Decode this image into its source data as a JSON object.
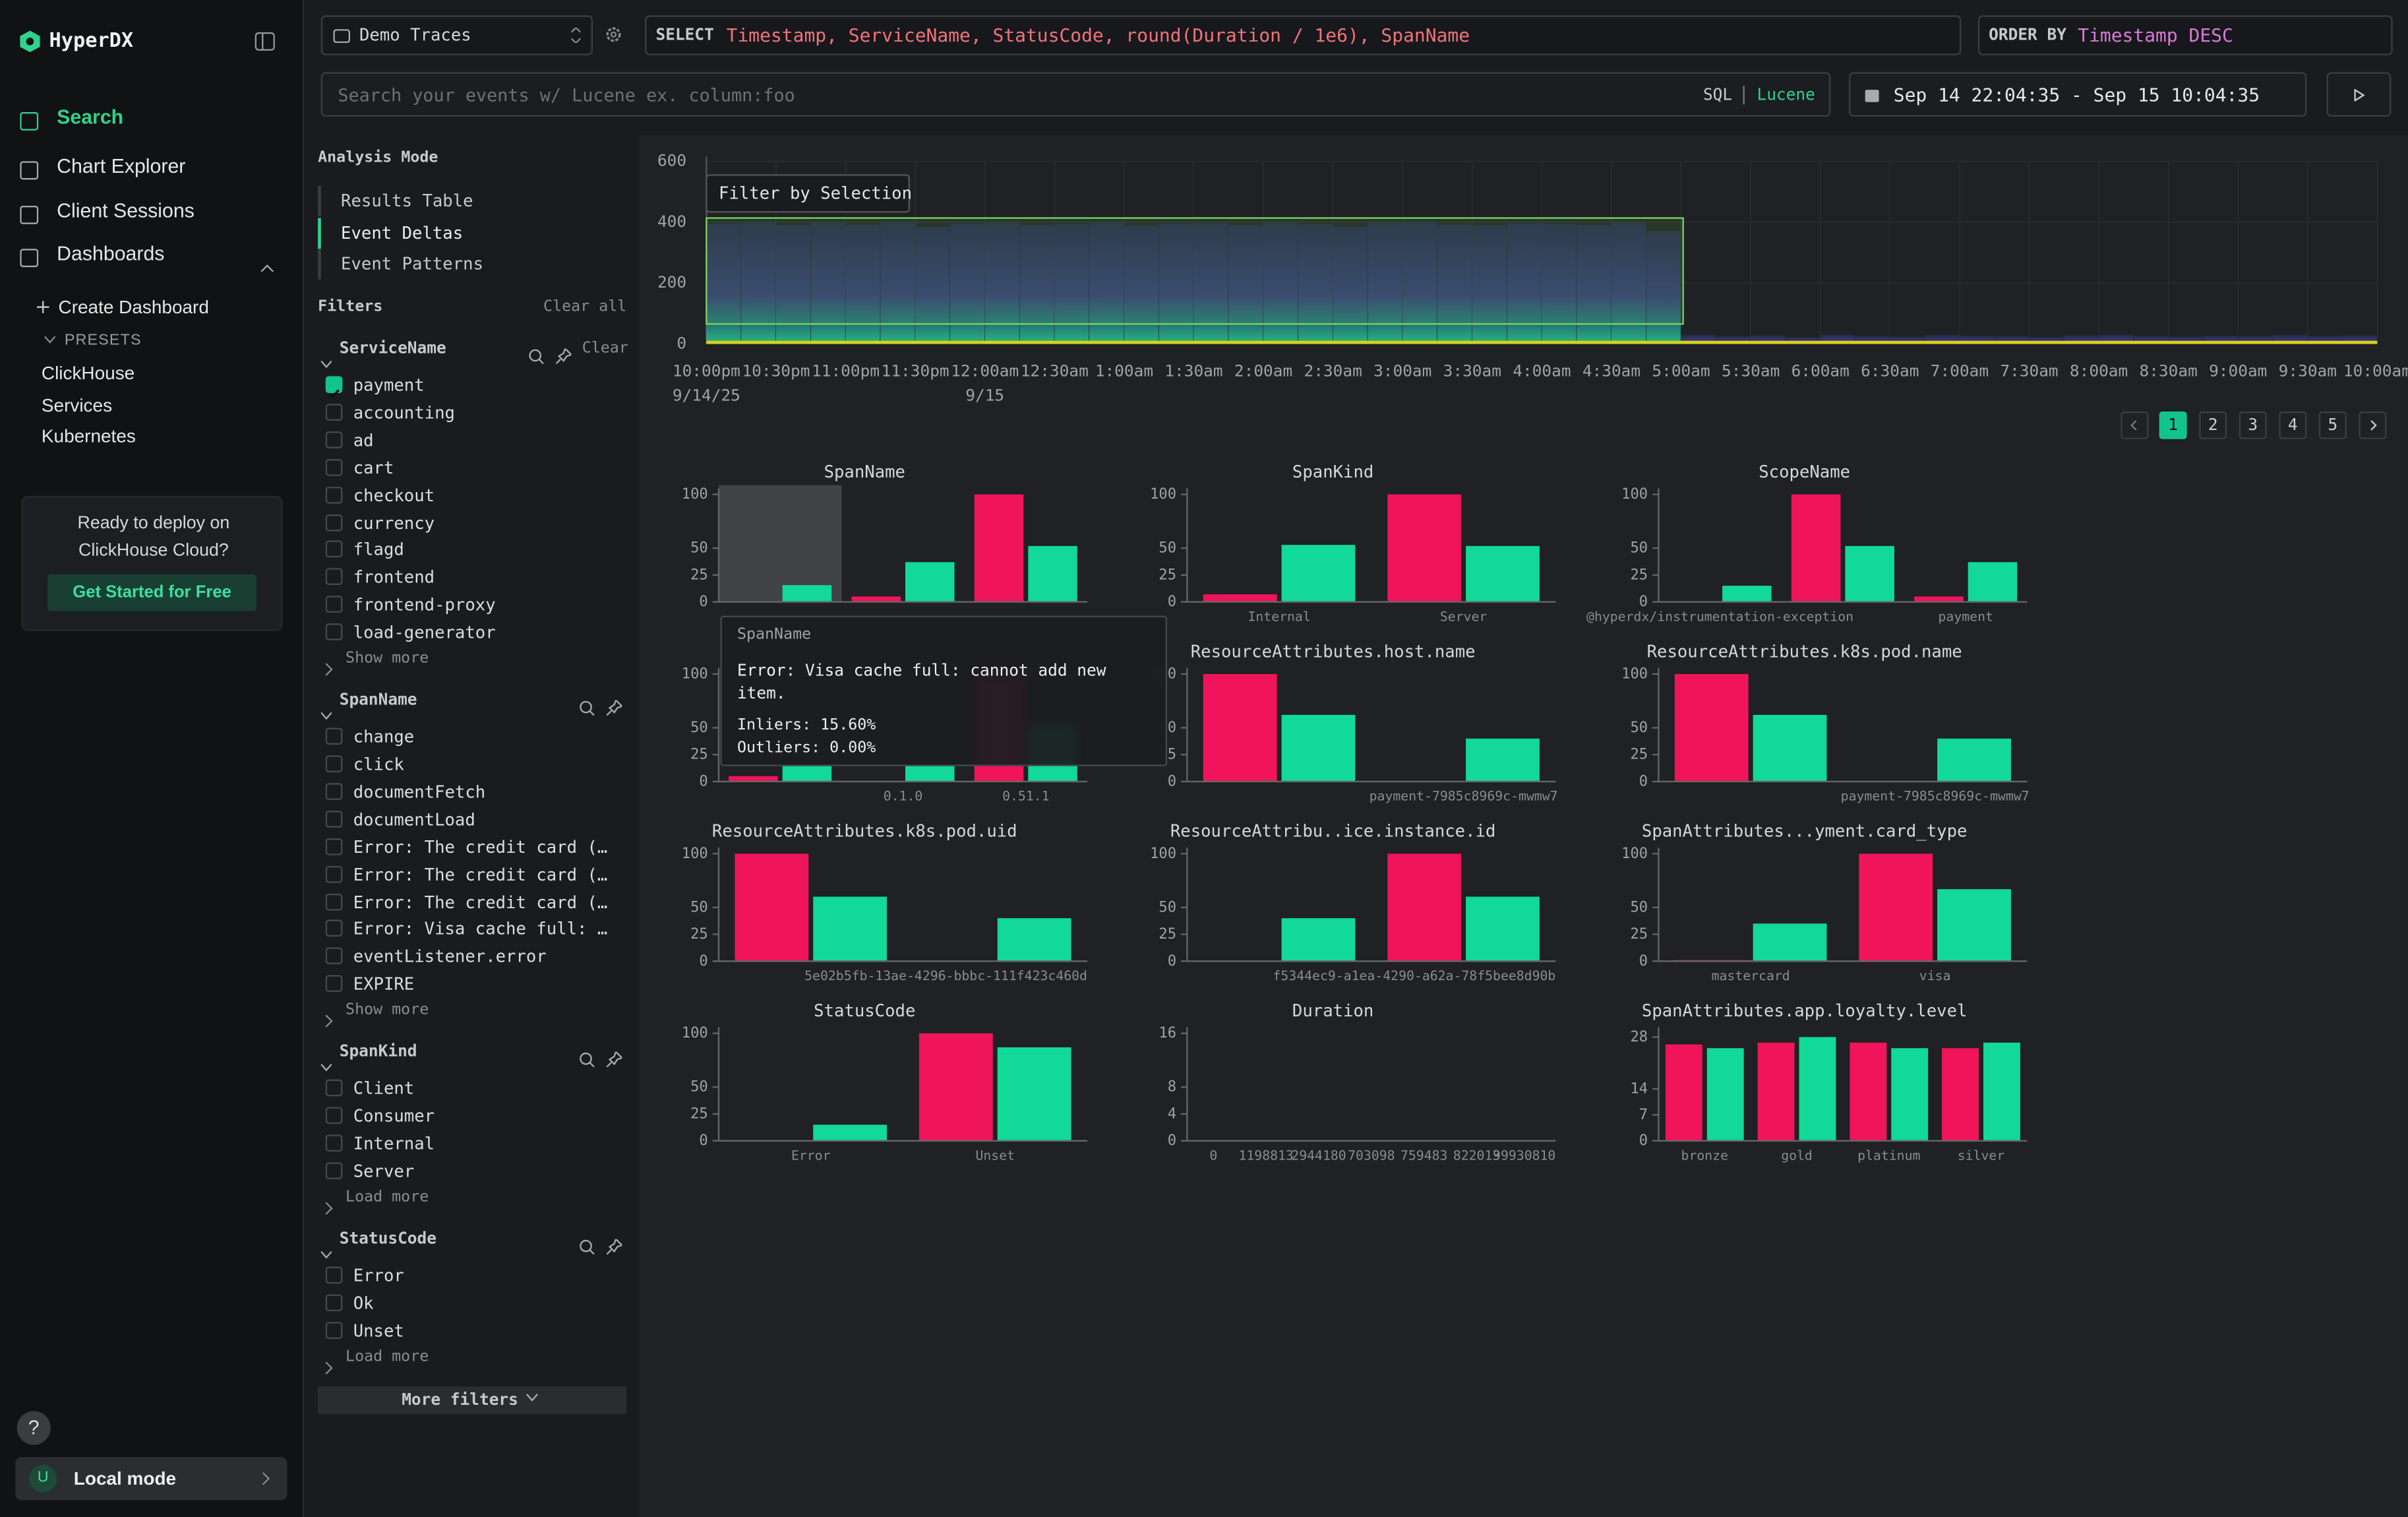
{
  "sidebar": {
    "brand": "HyperDX",
    "nav": [
      "Search",
      "Chart Explorer",
      "Client Sessions",
      "Dashboards"
    ],
    "active_nav": 0,
    "create_dashboard": "Create Dashboard",
    "presets_label": "PRESETS",
    "presets": [
      "ClickHouse",
      "Services",
      "Kubernetes"
    ],
    "promo": {
      "text": "Ready to deploy on ClickHouse Cloud?",
      "button": "Get Started for Free"
    },
    "help": "?",
    "user": {
      "initial": "U",
      "label": "Local mode"
    }
  },
  "topbar": {
    "source": "Demo Traces",
    "select_keyword": "SELECT",
    "select": "Timestamp, ServiceName, StatusCode, round(Duration / 1e6), SpanName",
    "order_keyword": "ORDER BY",
    "order": "Timestamp DESC",
    "search_placeholder": "Search your events w/ Lucene ex. column:foo",
    "query_lang": [
      "SQL",
      "Lucene"
    ],
    "time_range": "Sep 14 22:04:35 - Sep 15 10:04:35"
  },
  "filters_panel": {
    "analysis_title": "Analysis Mode",
    "modes": [
      "Results Table",
      "Event Deltas",
      "Event Patterns"
    ],
    "active_mode": 1,
    "filters_title": "Filters",
    "clear_all": "Clear all",
    "groups": [
      {
        "name": "ServiceName",
        "clear": "Clear",
        "options": [
          {
            "label": "payment",
            "checked": true
          },
          {
            "label": "accounting",
            "checked": false
          },
          {
            "label": "ad",
            "checked": false
          },
          {
            "label": "cart",
            "checked": false
          },
          {
            "label": "checkout",
            "checked": false
          },
          {
            "label": "currency",
            "checked": false
          },
          {
            "label": "flagd",
            "checked": false
          },
          {
            "label": "frontend",
            "checked": false
          },
          {
            "label": "frontend-proxy",
            "checked": false
          },
          {
            "label": "load-generator",
            "checked": false
          }
        ],
        "more": "Show more"
      },
      {
        "name": "SpanName",
        "options": [
          {
            "label": "change",
            "checked": false
          },
          {
            "label": "click",
            "checked": false
          },
          {
            "label": "documentFetch",
            "checked": false
          },
          {
            "label": "documentLoad",
            "checked": false
          },
          {
            "label": "Error: The credit card (…",
            "checked": false
          },
          {
            "label": "Error: The credit card (…",
            "checked": false
          },
          {
            "label": "Error: The credit card (…",
            "checked": false
          },
          {
            "label": "Error: Visa cache full: …",
            "checked": false
          },
          {
            "label": "eventListener.error",
            "checked": false
          },
          {
            "label": "EXPIRE",
            "checked": false
          }
        ],
        "more": "Show more"
      },
      {
        "name": "SpanKind",
        "options": [
          {
            "label": "Client",
            "checked": false
          },
          {
            "label": "Consumer",
            "checked": false
          },
          {
            "label": "Internal",
            "checked": false
          },
          {
            "label": "Server",
            "checked": false
          }
        ],
        "more": "Load more"
      },
      {
        "name": "StatusCode",
        "options": [
          {
            "label": "Error",
            "checked": false
          },
          {
            "label": "Ok",
            "checked": false
          },
          {
            "label": "Unset",
            "checked": false
          }
        ],
        "more": "Load more"
      }
    ],
    "more_filters": "More filters"
  },
  "pagination": {
    "pages": [
      1,
      2,
      3,
      4,
      5
    ],
    "current": 1
  },
  "chart_data": [
    {
      "type": "histogram",
      "selection_label": "Filter by Selection",
      "bins": [
        0,
        15,
        30,
        45,
        60,
        75,
        90,
        105,
        120,
        135,
        150,
        165,
        180,
        195,
        210,
        225,
        240,
        255,
        270,
        285,
        300,
        315,
        330,
        345,
        360,
        375,
        390,
        405,
        420,
        435,
        450,
        465,
        480,
        495,
        510,
        525,
        540,
        555,
        570,
        585,
        600,
        615,
        630,
        645,
        660,
        675,
        690,
        705,
        720
      ],
      "values": [
        395,
        400,
        390,
        398,
        392,
        400,
        385,
        396,
        399,
        390,
        394,
        400,
        388,
        395,
        397,
        391,
        399,
        393,
        386,
        398,
        400,
        392,
        389,
        396,
        394,
        390,
        398,
        370,
        30,
        25,
        28,
        22,
        30,
        26,
        24,
        29,
        27,
        25,
        23,
        28,
        30,
        26,
        24,
        27,
        25,
        29,
        26,
        28
      ],
      "xlim": [
        0,
        720
      ],
      "xticks": [
        {
          "value": 0,
          "label": "10:00pm"
        },
        {
          "value": 30,
          "label": "10:30pm"
        },
        {
          "value": 60,
          "label": "11:00pm"
        },
        {
          "value": 90,
          "label": "11:30pm"
        },
        {
          "value": 120,
          "label": "12:00am"
        },
        {
          "value": 150,
          "label": "12:30am"
        },
        {
          "value": 180,
          "label": "1:00am"
        },
        {
          "value": 210,
          "label": "1:30am"
        },
        {
          "value": 240,
          "label": "2:00am"
        },
        {
          "value": 270,
          "label": "2:30am"
        },
        {
          "value": 300,
          "label": "3:00am"
        },
        {
          "value": 330,
          "label": "3:30am"
        },
        {
          "value": 360,
          "label": "4:00am"
        },
        {
          "value": 390,
          "label": "4:30am"
        },
        {
          "value": 420,
          "label": "5:00am"
        },
        {
          "value": 450,
          "label": "5:30am"
        },
        {
          "value": 480,
          "label": "6:00am"
        },
        {
          "value": 510,
          "label": "6:30am"
        },
        {
          "value": 540,
          "label": "7:00am"
        },
        {
          "value": 570,
          "label": "7:30am"
        },
        {
          "value": 600,
          "label": "8:00am"
        },
        {
          "value": 630,
          "label": "8:30am"
        },
        {
          "value": 660,
          "label": "9:00am"
        },
        {
          "value": 690,
          "label": "9:30am"
        },
        {
          "value": 720,
          "label": "10:00am"
        }
      ],
      "xtick_dates": [
        {
          "value": 0,
          "label": "9/14/25"
        },
        {
          "value": 120,
          "label": "9/15"
        }
      ],
      "ylim": [
        0,
        600
      ],
      "yticks": [
        0,
        200,
        400,
        600
      ],
      "grid": true
    },
    {
      "type": "bar",
      "title": "SpanName",
      "categories": [
        null,
        null,
        null
      ],
      "series": [
        {
          "color": "#f0145a",
          "values": [
            0,
            5,
            100
          ]
        },
        {
          "color": "#12d898",
          "values": [
            15.6,
            37,
            52
          ]
        }
      ],
      "ylim": [
        0,
        100
      ],
      "yticks": [
        0,
        25,
        50,
        100
      ],
      "hover_index": 0,
      "tooltip": {
        "title": "SpanName",
        "text": "Error: Visa cache full: cannot add new item.",
        "rows": [
          "Inliers: 15.60%",
          "Outliers: 0.00%"
        ]
      }
    },
    {
      "type": "bar",
      "title": "SpanKind",
      "categories": [
        "Internal",
        "Server"
      ],
      "series": [
        {
          "color": "#f0145a",
          "values": [
            7,
            100
          ]
        },
        {
          "color": "#12d898",
          "values": [
            53,
            52
          ]
        }
      ],
      "ylim": [
        0,
        100
      ],
      "yticks": [
        0,
        25,
        50,
        100
      ]
    },
    {
      "type": "bar",
      "title": "ScopeName",
      "categories": [
        "@hyperdx/instrumentation-exception",
        null,
        "payment"
      ],
      "series": [
        {
          "color": "#f0145a",
          "values": [
            0,
            100,
            5
          ]
        },
        {
          "color": "#12d898",
          "values": [
            15,
            52,
            37
          ]
        }
      ],
      "ylim": [
        0,
        100
      ],
      "yticks": [
        0,
        25,
        50,
        100
      ]
    },
    {
      "type": "bar",
      "categories": [
        null,
        "0.1.0",
        "0.51.1"
      ],
      "series": [
        {
          "color": "#f0145a",
          "values": [
            5,
            0,
            100
          ]
        },
        {
          "color": "#12d898",
          "values": [
            15,
            15,
            52
          ]
        }
      ],
      "ylim": [
        0,
        100
      ],
      "yticks": [
        0,
        25,
        50,
        100
      ]
    },
    {
      "type": "bar",
      "title": "ResourceAttributes.host.name",
      "categories": [
        null,
        "payment-7985c8969c-mwmw7"
      ],
      "series": [
        {
          "color": "#f0145a",
          "values": [
            100,
            0
          ]
        },
        {
          "color": "#12d898",
          "values": [
            62,
            40
          ]
        }
      ],
      "ylim": [
        0,
        100
      ],
      "yticks": [
        0,
        25,
        50,
        100
      ]
    },
    {
      "type": "bar",
      "title": "ResourceAttributes.k8s.pod.name",
      "categories": [
        null,
        "payment-7985c8969c-mwmw7"
      ],
      "series": [
        {
          "color": "#f0145a",
          "values": [
            100,
            0
          ]
        },
        {
          "color": "#12d898",
          "values": [
            62,
            40
          ]
        }
      ],
      "ylim": [
        0,
        100
      ],
      "yticks": [
        0,
        25,
        50,
        100
      ]
    },
    {
      "type": "bar",
      "title": "ResourceAttributes.k8s.pod.uid",
      "categories": [
        null,
        "5e02b5fb-13ae-4296-bbbc-111f423c460d"
      ],
      "series": [
        {
          "color": "#f0145a",
          "values": [
            100,
            0
          ]
        },
        {
          "color": "#12d898",
          "values": [
            60,
            40
          ]
        }
      ],
      "ylim": [
        0,
        100
      ],
      "yticks": [
        0,
        25,
        50,
        100
      ]
    },
    {
      "type": "bar",
      "title": "ResourceAttribu..ice.instance.id",
      "categories": [
        null,
        "f5344ec9-a1ea-4290-a62a-78f5bee8d90b"
      ],
      "series": [
        {
          "color": "#f0145a",
          "values": [
            0,
            100
          ]
        },
        {
          "color": "#12d898",
          "values": [
            40,
            60
          ]
        }
      ],
      "ylim": [
        0,
        100
      ],
      "yticks": [
        0,
        25,
        50,
        100
      ]
    },
    {
      "type": "bar",
      "title": "SpanAttributes...yment.card_type",
      "categories": [
        "mastercard",
        "visa"
      ],
      "series": [
        {
          "color": "#f0145a",
          "values": [
            1,
            100
          ]
        },
        {
          "color": "#12d898",
          "values": [
            35,
            67
          ]
        }
      ],
      "ylim": [
        0,
        100
      ],
      "yticks": [
        0,
        25,
        50,
        100
      ]
    },
    {
      "type": "bar",
      "title": "StatusCode",
      "categories": [
        "Error",
        "Unset"
      ],
      "series": [
        {
          "color": "#f0145a",
          "values": [
            0,
            100
          ]
        },
        {
          "color": "#12d898",
          "values": [
            15,
            87
          ]
        }
      ],
      "ylim": [
        0,
        100
      ],
      "yticks": [
        0,
        25,
        50,
        100
      ]
    },
    {
      "type": "bar",
      "title": "Duration",
      "categories": [
        "0",
        "1198813",
        "2944180",
        "703098",
        "759483",
        "822013",
        "99930810"
      ],
      "series": [
        {
          "color": "#f0145a",
          "values": [
            0,
            0,
            0,
            0,
            0,
            0,
            0
          ]
        },
        {
          "color": "#12d898",
          "values": [
            0,
            0,
            0,
            0,
            0,
            0,
            0
          ]
        }
      ],
      "ylim": [
        0,
        16
      ],
      "yticks": [
        0,
        4,
        8,
        16
      ]
    },
    {
      "type": "bar",
      "title": "SpanAttributes.app.loyalty.level",
      "categories": [
        "bronze",
        "gold",
        "platinum",
        "silver"
      ],
      "series": [
        {
          "color": "#f0145a",
          "values": [
            26,
            26.5,
            26.5,
            25
          ]
        },
        {
          "color": "#12d898",
          "values": [
            25,
            28,
            25,
            26.5
          ]
        }
      ],
      "ylim": [
        0,
        29
      ],
      "yticks": [
        0,
        7,
        14,
        28
      ]
    }
  ]
}
